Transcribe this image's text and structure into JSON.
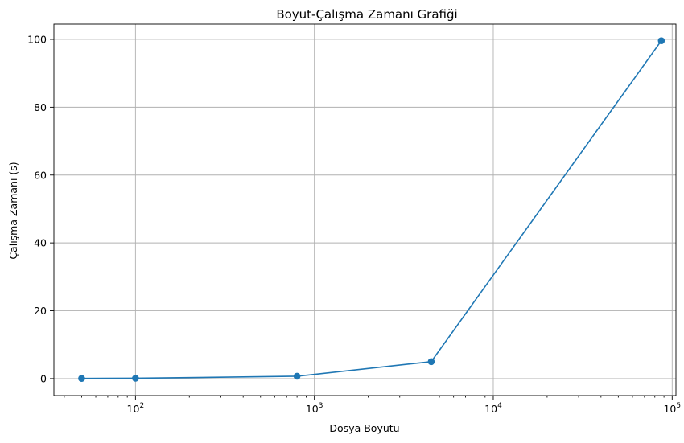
{
  "chart_data": {
    "type": "line",
    "title": "Boyut-Çalışma Zamanı Grafiği",
    "xlabel": "Dosya Boyutu",
    "ylabel": "Çalışma Zamanı (s)",
    "xscale": "log",
    "xlim": [
      35,
      105000
    ],
    "ylim": [
      -5,
      104.5
    ],
    "grid": true,
    "x_ticks": [
      {
        "value": 100,
        "base": "10",
        "exp": "2"
      },
      {
        "value": 1000,
        "base": "10",
        "exp": "3"
      },
      {
        "value": 10000,
        "base": "10",
        "exp": "4"
      },
      {
        "value": 100000,
        "base": "10",
        "exp": "5"
      }
    ],
    "y_ticks": [
      0,
      20,
      40,
      60,
      80,
      100
    ],
    "series": [
      {
        "x": [
          50,
          100,
          800,
          4500,
          87000
        ],
        "y": [
          0.05,
          0.1,
          0.7,
          5.0,
          99.6
        ],
        "color": "#1f77b4",
        "marker": "circle"
      }
    ]
  }
}
